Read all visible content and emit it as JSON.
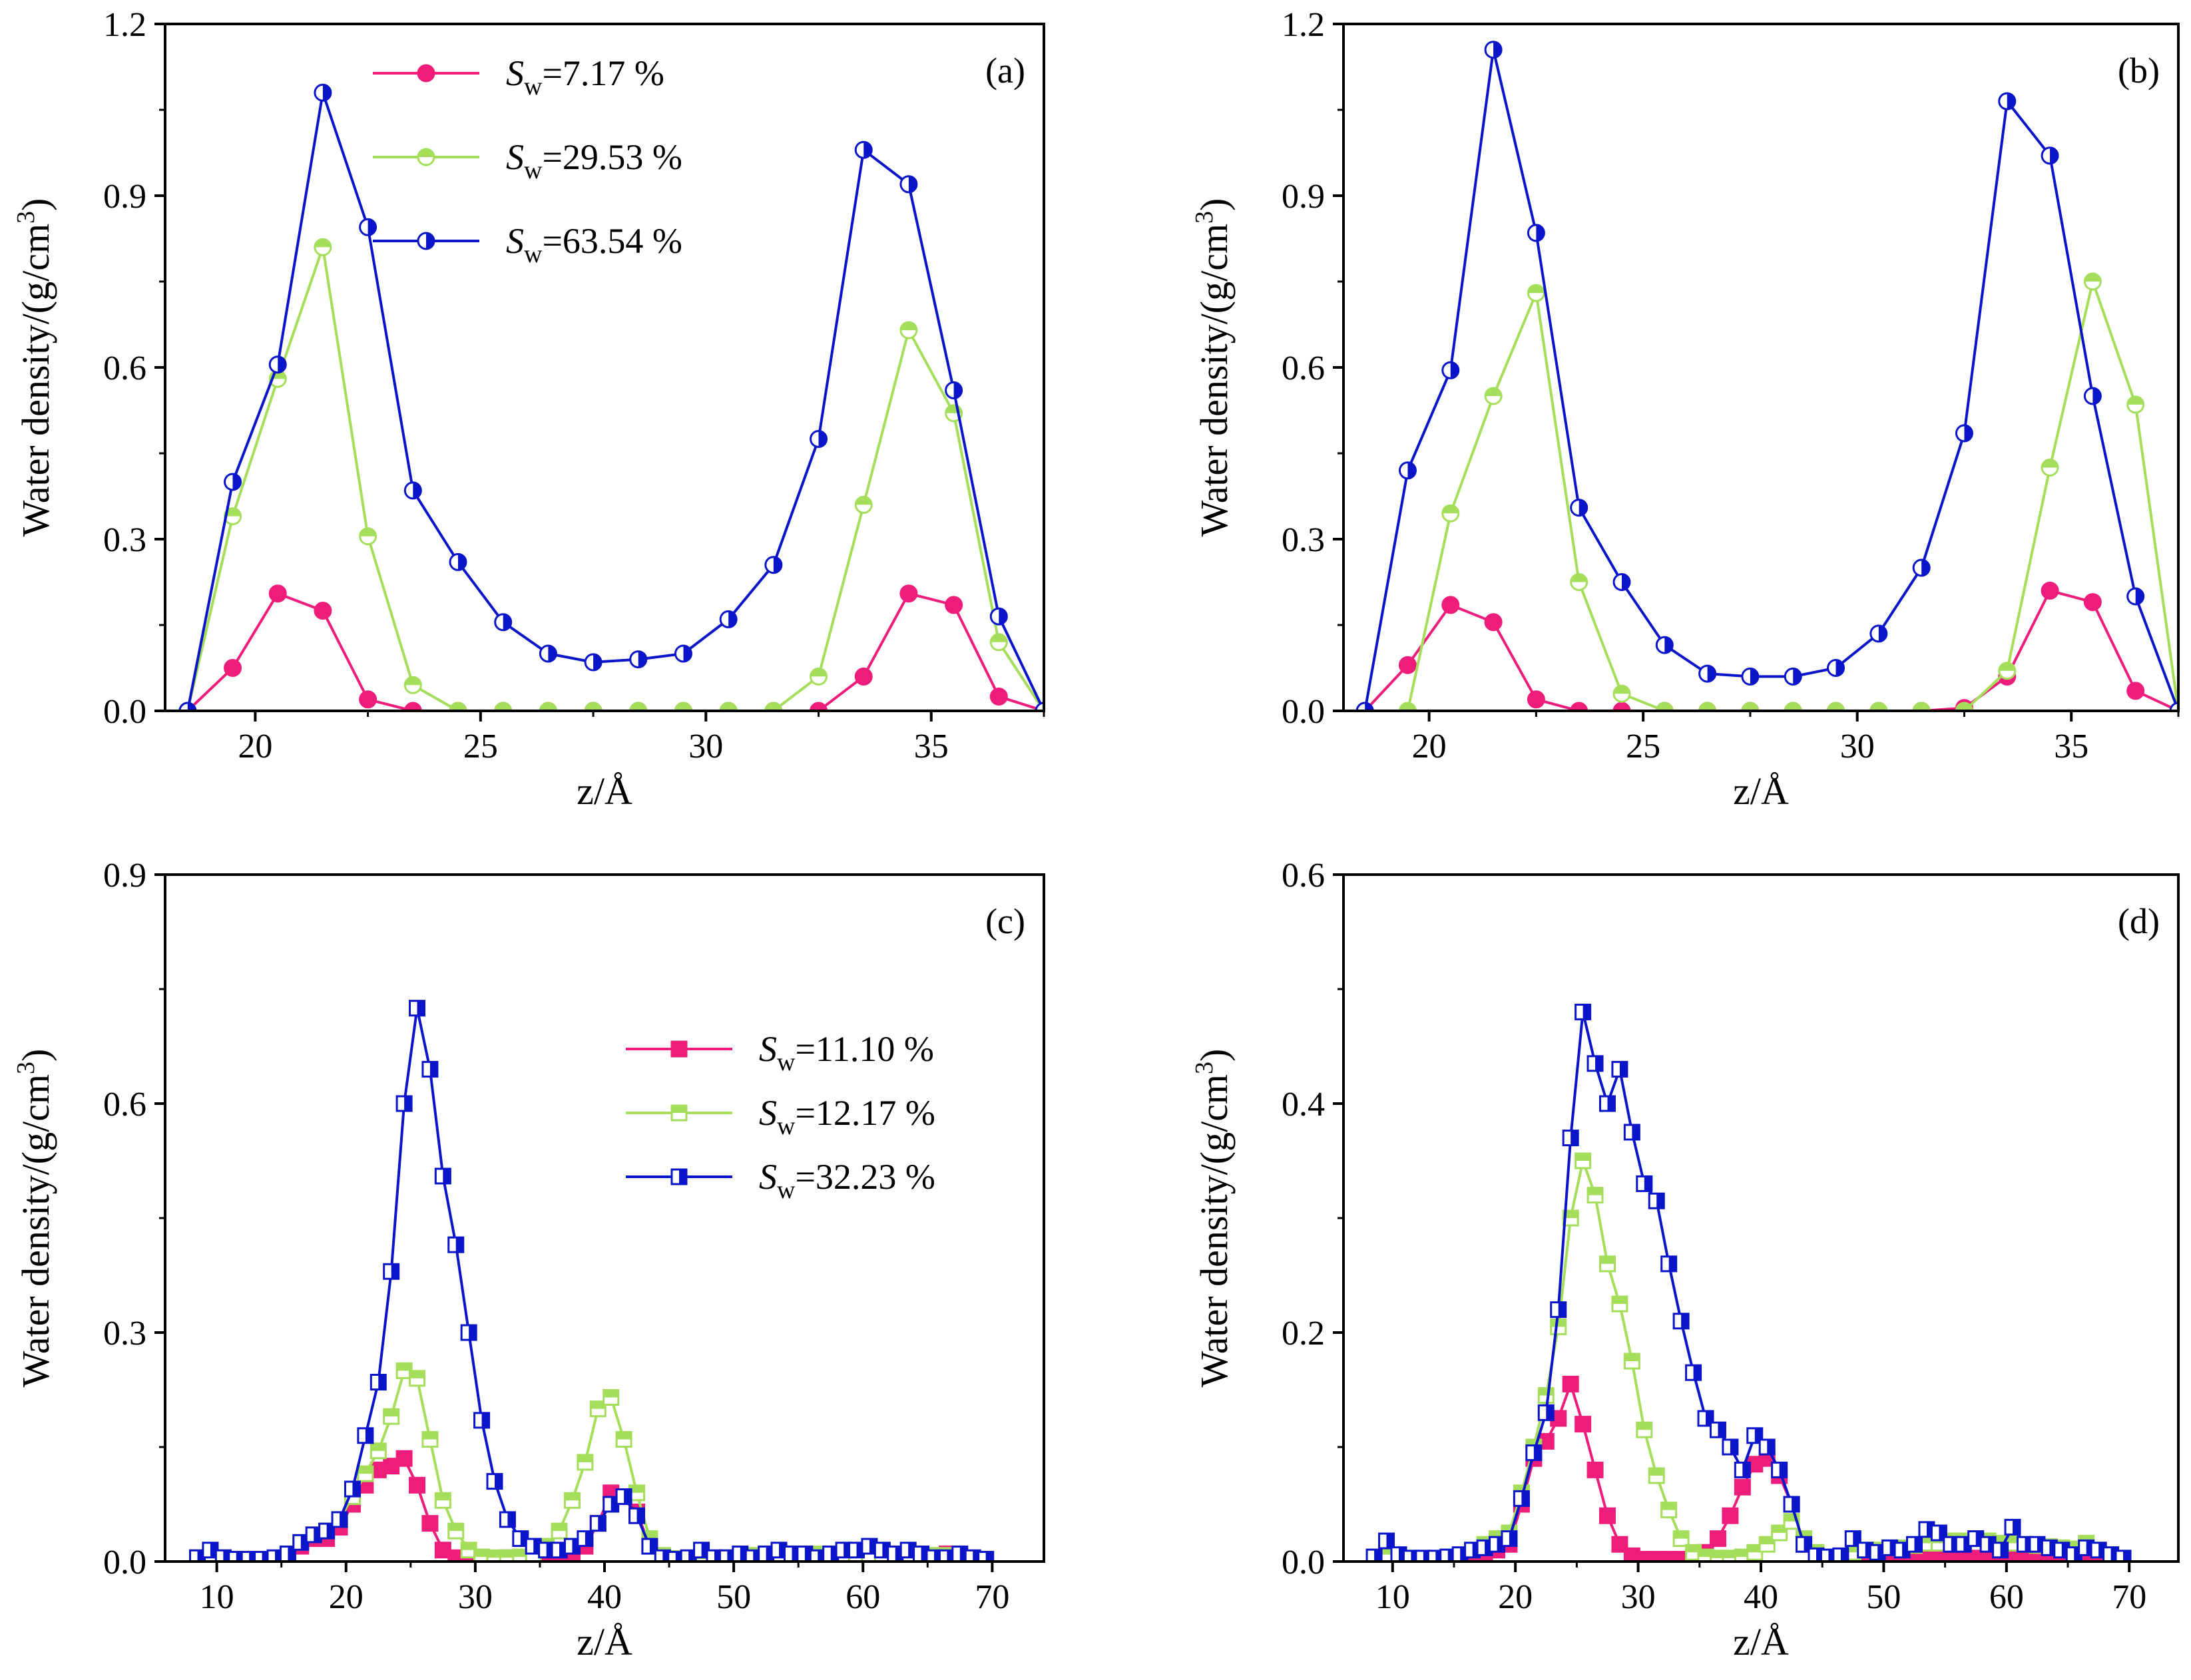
{
  "figure": {
    "colors": {
      "pink": "#EE1C7A",
      "green": "#A5DE5A",
      "blue": "#0A14C8"
    },
    "marker_icons": [
      "half-filled-circle-icon",
      "half-filled-square-icon"
    ]
  },
  "chart_data": [
    {
      "panel": "(a)",
      "type": "line",
      "xlabel": "z/Å",
      "ylabel": "Water density/(g/cm3)",
      "ylabel_base": "Water density/(g/cm",
      "ylabel_sup": "3",
      "ylabel_tail": ")",
      "xlim": [
        18,
        37.5
      ],
      "ylim": [
        0,
        1.2
      ],
      "xticks": [
        20,
        25,
        30,
        35
      ],
      "xtick_labels": [
        "20",
        "25",
        "30",
        "35"
      ],
      "yticks": [
        0,
        0.3,
        0.6,
        0.9,
        1.2
      ],
      "ytick_labels": [
        "0.0",
        "0.3",
        "0.6",
        "0.9",
        "1.2"
      ],
      "marker": "circle",
      "legend": true,
      "legend_position": "top-center",
      "x": [
        18.5,
        19.5,
        20.5,
        21.5,
        22.5,
        23.5,
        24.5,
        25.5,
        26.5,
        27.5,
        28.5,
        29.5,
        30.5,
        31.5,
        32.5,
        33.5,
        34.5,
        35.5,
        36.5,
        37.5
      ],
      "series": [
        {
          "name": "Sw=7.17 %",
          "sym": "S",
          "sub": "w",
          "val": "=7.17 %",
          "color": "#EE1C7A",
          "fill": "full",
          "values": [
            0.0,
            0.075,
            0.205,
            0.175,
            0.02,
            0.0,
            0.0,
            0.0,
            0.0,
            0.0,
            0.0,
            0.0,
            0.0,
            0.0,
            0.0,
            0.06,
            0.205,
            0.185,
            0.025,
            0.0
          ]
        },
        {
          "name": "Sw=29.53 %",
          "sym": "S",
          "sub": "w",
          "val": "=29.53 %",
          "color": "#A5DE5A",
          "fill": "top",
          "values": [
            0.0,
            0.34,
            0.58,
            0.81,
            0.305,
            0.045,
            0.0,
            0.0,
            0.0,
            0.0,
            0.0,
            0.0,
            0.0,
            0.0,
            0.06,
            0.36,
            0.665,
            0.52,
            0.12,
            0.0
          ]
        },
        {
          "name": "Sw=63.54 %",
          "sym": "S",
          "sub": "w",
          "val": "=63.54 %",
          "color": "#0A14C8",
          "fill": "right",
          "values": [
            0.0,
            0.4,
            0.605,
            1.08,
            0.845,
            0.385,
            0.26,
            0.155,
            0.1,
            0.085,
            0.09,
            0.1,
            0.16,
            0.255,
            0.475,
            0.98,
            0.92,
            0.56,
            0.165,
            0.0
          ]
        }
      ]
    },
    {
      "panel": "(b)",
      "type": "line",
      "xlabel": "z/Å",
      "ylabel": "Water density/(g/cm3)",
      "ylabel_base": "Water density/(g/cm",
      "ylabel_sup": "3",
      "ylabel_tail": ")",
      "xlim": [
        18,
        37.5
      ],
      "ylim": [
        0,
        1.2
      ],
      "xticks": [
        20,
        25,
        30,
        35
      ],
      "xtick_labels": [
        "20",
        "25",
        "30",
        "35"
      ],
      "yticks": [
        0,
        0.3,
        0.6,
        0.9,
        1.2
      ],
      "ytick_labels": [
        "0.0",
        "0.3",
        "0.6",
        "0.9",
        "1.2"
      ],
      "marker": "circle",
      "legend": false,
      "x": [
        18.5,
        19.5,
        20.5,
        21.5,
        22.5,
        23.5,
        24.5,
        25.5,
        26.5,
        27.5,
        28.5,
        29.5,
        30.5,
        31.5,
        32.5,
        33.5,
        34.5,
        35.5,
        36.5,
        37.5
      ],
      "series": [
        {
          "name": "Sw=7.17 %",
          "color": "#EE1C7A",
          "fill": "full",
          "values": [
            0.0,
            0.08,
            0.185,
            0.155,
            0.02,
            0.0,
            0.0,
            0.0,
            0.0,
            0.0,
            0.0,
            0.0,
            0.0,
            0.0,
            0.005,
            0.06,
            0.21,
            0.19,
            0.035,
            0.0
          ]
        },
        {
          "name": "Sw=29.53 %",
          "color": "#A5DE5A",
          "fill": "top",
          "values": [
            0.0,
            0.0,
            0.345,
            0.55,
            0.73,
            0.225,
            0.03,
            0.0,
            0.0,
            0.0,
            0.0,
            0.0,
            0.0,
            0.0,
            0.0,
            0.07,
            0.425,
            0.75,
            0.535,
            0.0
          ]
        },
        {
          "name": "Sw=63.54 %",
          "color": "#0A14C8",
          "fill": "right",
          "values": [
            0.0,
            0.42,
            0.595,
            1.155,
            0.835,
            0.355,
            0.225,
            0.115,
            0.065,
            0.06,
            0.06,
            0.075,
            0.135,
            0.25,
            0.485,
            1.065,
            0.97,
            0.55,
            0.2,
            0.0
          ]
        }
      ]
    },
    {
      "panel": "(c)",
      "type": "line",
      "xlabel": "z/Å",
      "ylabel": "Water density/(g/cm3)",
      "ylabel_base": "Water density/(g/cm",
      "ylabel_sup": "3",
      "ylabel_tail": ")",
      "xlim": [
        6,
        74
      ],
      "ylim": [
        0,
        0.9
      ],
      "xticks": [
        10,
        20,
        30,
        40,
        50,
        60,
        70
      ],
      "xtick_labels": [
        "10",
        "20",
        "30",
        "40",
        "50",
        "60",
        "70"
      ],
      "yticks": [
        0,
        0.3,
        0.6,
        0.9
      ],
      "ytick_labels": [
        "0.0",
        "0.3",
        "0.6",
        "0.9"
      ],
      "marker": "square",
      "legend": true,
      "legend_position": "middle-right",
      "x": [
        8.5,
        9.5,
        10.5,
        11.5,
        12.5,
        13.5,
        14.5,
        15.5,
        16.5,
        17.5,
        18.5,
        19.5,
        20.5,
        21.5,
        22.5,
        23.5,
        24.5,
        25.5,
        26.5,
        27.5,
        28.5,
        29.5,
        30.5,
        31.5,
        32.5,
        33.5,
        34.5,
        35.5,
        36.5,
        37.5,
        38.5,
        39.5,
        40.5,
        41.5,
        42.5,
        43.5,
        44.5,
        45.5,
        46.5,
        47.5,
        48.5,
        49.5,
        50.5,
        51.5,
        52.5,
        53.5,
        54.5,
        55.5,
        56.5,
        57.5,
        58.5,
        59.5,
        60.5,
        61.5,
        62.5,
        63.5,
        64.5,
        65.5,
        66.5,
        67.5,
        68.5,
        69.5
      ],
      "series": [
        {
          "name": "Sw=11.10 %",
          "sym": "S",
          "sub": "w",
          "val": "=11.10 %",
          "color": "#EE1C7A",
          "fill": "full",
          "values": [
            0.005,
            0.01,
            0.005,
            0.003,
            0.002,
            0.002,
            0.003,
            0.008,
            0.02,
            0.03,
            0.03,
            0.045,
            0.075,
            0.1,
            0.12,
            0.125,
            0.135,
            0.1,
            0.05,
            0.015,
            0.005,
            0.003,
            0.003,
            0.003,
            0.005,
            0.005,
            0.005,
            0.005,
            0.005,
            0.008,
            0.02,
            0.05,
            0.09,
            0.085,
            0.065,
            0.02,
            0.005,
            0.003,
            0.003,
            0.003,
            0.003,
            0.003,
            0.004,
            0.005,
            0.005,
            0.005,
            0.005,
            0.005,
            0.005,
            0.005,
            0.005,
            0.005,
            0.005,
            0.005,
            0.005,
            0.005,
            0.005,
            0.005,
            0.01,
            0.005,
            0.003,
            0.002
          ]
        },
        {
          "name": "Sw=12.17 %",
          "sym": "S",
          "sub": "w",
          "val": "=12.17 %",
          "color": "#A5DE5A",
          "fill": "top",
          "values": [
            0.005,
            0.01,
            0.005,
            0.003,
            0.002,
            0.002,
            0.003,
            0.01,
            0.025,
            0.035,
            0.04,
            0.055,
            0.085,
            0.115,
            0.145,
            0.19,
            0.25,
            0.24,
            0.16,
            0.08,
            0.04,
            0.015,
            0.006,
            0.005,
            0.005,
            0.006,
            0.01,
            0.02,
            0.04,
            0.08,
            0.13,
            0.2,
            0.215,
            0.16,
            0.09,
            0.03,
            0.008,
            0.004,
            0.003,
            0.003,
            0.004,
            0.005,
            0.006,
            0.008,
            0.008,
            0.01,
            0.01,
            0.01,
            0.01,
            0.01,
            0.01,
            0.01,
            0.01,
            0.01,
            0.01,
            0.008,
            0.008,
            0.008,
            0.008,
            0.006,
            0.004,
            0.003
          ]
        },
        {
          "name": "Sw=32.23 %",
          "sym": "S",
          "sub": "w",
          "val": "=32.23 %",
          "color": "#0A14C8",
          "fill": "right",
          "values": [
            0.005,
            0.015,
            0.005,
            0.003,
            0.003,
            0.003,
            0.005,
            0.01,
            0.025,
            0.035,
            0.04,
            0.055,
            0.095,
            0.165,
            0.235,
            0.38,
            0.6,
            0.725,
            0.645,
            0.505,
            0.415,
            0.3,
            0.185,
            0.105,
            0.055,
            0.03,
            0.02,
            0.015,
            0.015,
            0.02,
            0.03,
            0.05,
            0.075,
            0.085,
            0.06,
            0.02,
            0.005,
            0.003,
            0.005,
            0.015,
            0.005,
            0.005,
            0.01,
            0.005,
            0.01,
            0.015,
            0.01,
            0.01,
            0.005,
            0.01,
            0.015,
            0.015,
            0.02,
            0.015,
            0.01,
            0.015,
            0.01,
            0.005,
            0.005,
            0.01,
            0.005,
            0.003
          ]
        }
      ]
    },
    {
      "panel": "(d)",
      "type": "line",
      "xlabel": "z/Å",
      "ylabel": "Water density/(g/cm3)",
      "ylabel_base": "Water density/(g/cm",
      "ylabel_sup": "3",
      "ylabel_tail": ")",
      "xlim": [
        6,
        74
      ],
      "ylim": [
        0,
        0.6
      ],
      "xticks": [
        10,
        20,
        30,
        40,
        50,
        60,
        70
      ],
      "xtick_labels": [
        "10",
        "20",
        "30",
        "40",
        "50",
        "60",
        "70"
      ],
      "yticks": [
        0,
        0.2,
        0.4,
        0.6
      ],
      "ytick_labels": [
        "0.0",
        "0.2",
        "0.4",
        "0.6"
      ],
      "marker": "square",
      "legend": false,
      "x": [
        8.5,
        9.5,
        10.5,
        11.5,
        12.5,
        13.5,
        14.5,
        15.5,
        16.5,
        17.5,
        18.5,
        19.5,
        20.5,
        21.5,
        22.5,
        23.5,
        24.5,
        25.5,
        26.5,
        27.5,
        28.5,
        29.5,
        30.5,
        31.5,
        32.5,
        33.5,
        34.5,
        35.5,
        36.5,
        37.5,
        38.5,
        39.5,
        40.5,
        41.5,
        42.5,
        43.5,
        44.5,
        45.5,
        46.5,
        47.5,
        48.5,
        49.5,
        50.5,
        51.5,
        52.5,
        53.5,
        54.5,
        55.5,
        56.5,
        57.5,
        58.5,
        59.5,
        60.5,
        61.5,
        62.5,
        63.5,
        64.5,
        65.5,
        66.5,
        67.5,
        68.5,
        69.5
      ],
      "series": [
        {
          "name": "Sw=11.10 %",
          "color": "#EE1C7A",
          "fill": "full",
          "values": [
            0.003,
            0.006,
            0.003,
            0.002,
            0.002,
            0.002,
            0.002,
            0.004,
            0.006,
            0.008,
            0.01,
            0.015,
            0.05,
            0.09,
            0.105,
            0.125,
            0.155,
            0.12,
            0.08,
            0.04,
            0.015,
            0.005,
            0.002,
            0.002,
            0.002,
            0.002,
            0.003,
            0.008,
            0.02,
            0.04,
            0.065,
            0.085,
            0.09,
            0.075,
            0.05,
            0.015,
            0.005,
            0.002,
            0.002,
            0.002,
            0.002,
            0.002,
            0.002,
            0.003,
            0.003,
            0.003,
            0.003,
            0.003,
            0.003,
            0.003,
            0.003,
            0.003,
            0.003,
            0.003,
            0.003,
            0.003,
            0.003,
            0.003,
            0.003,
            0.003,
            0.002,
            0.002
          ]
        },
        {
          "name": "Sw=12.17 %",
          "color": "#A5DE5A",
          "fill": "top",
          "values": [
            0.003,
            0.006,
            0.003,
            0.002,
            0.002,
            0.002,
            0.003,
            0.005,
            0.01,
            0.015,
            0.02,
            0.025,
            0.06,
            0.1,
            0.145,
            0.205,
            0.3,
            0.35,
            0.32,
            0.26,
            0.225,
            0.175,
            0.115,
            0.075,
            0.045,
            0.02,
            0.008,
            0.004,
            0.003,
            0.003,
            0.004,
            0.008,
            0.015,
            0.025,
            0.035,
            0.02,
            0.008,
            0.004,
            0.004,
            0.008,
            0.01,
            0.01,
            0.012,
            0.012,
            0.014,
            0.016,
            0.016,
            0.018,
            0.018,
            0.02,
            0.018,
            0.016,
            0.016,
            0.015,
            0.014,
            0.013,
            0.012,
            0.011,
            0.016,
            0.01,
            0.006,
            0.003
          ]
        },
        {
          "name": "Sw=32.23 %",
          "color": "#0A14C8",
          "fill": "right",
          "values": [
            0.004,
            0.018,
            0.006,
            0.003,
            0.003,
            0.003,
            0.004,
            0.006,
            0.01,
            0.012,
            0.015,
            0.02,
            0.055,
            0.095,
            0.13,
            0.22,
            0.37,
            0.48,
            0.435,
            0.4,
            0.43,
            0.375,
            0.33,
            0.315,
            0.26,
            0.21,
            0.165,
            0.125,
            0.115,
            0.1,
            0.08,
            0.11,
            0.1,
            0.08,
            0.05,
            0.015,
            0.005,
            0.004,
            0.005,
            0.02,
            0.01,
            0.008,
            0.012,
            0.01,
            0.015,
            0.028,
            0.025,
            0.015,
            0.015,
            0.02,
            0.015,
            0.01,
            0.03,
            0.015,
            0.015,
            0.012,
            0.01,
            0.006,
            0.012,
            0.01,
            0.006,
            0.003
          ]
        }
      ]
    }
  ]
}
